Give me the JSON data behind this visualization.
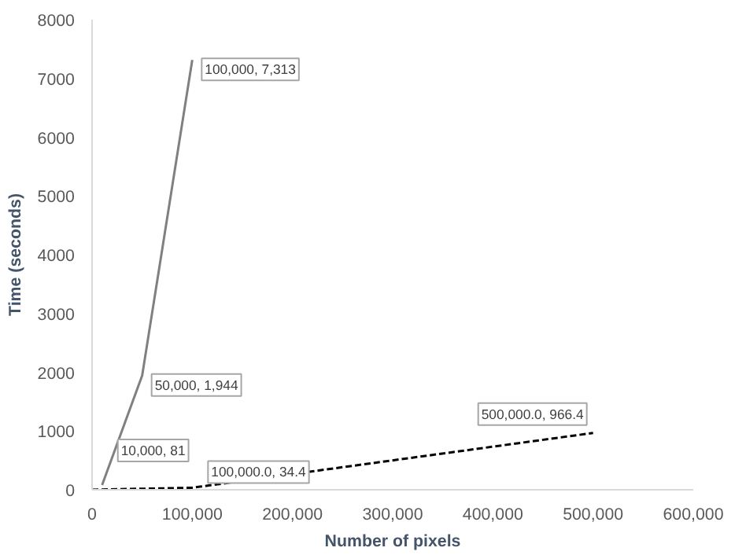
{
  "chart_data": {
    "type": "line",
    "xlabel": "Number of pixels",
    "ylabel": "Time (seconds)",
    "xlim": [
      0,
      600000
    ],
    "ylim": [
      0,
      8000
    ],
    "xticks": [
      {
        "value": 0,
        "label": "0"
      },
      {
        "value": 100000,
        "label": "100,000"
      },
      {
        "value": 200000,
        "label": "200,000"
      },
      {
        "value": 300000,
        "label": "300,000"
      },
      {
        "value": 400000,
        "label": "400,000"
      },
      {
        "value": 500000,
        "label": "500,000"
      },
      {
        "value": 600000,
        "label": "600,000"
      }
    ],
    "yticks": [
      0,
      1000,
      2000,
      3000,
      4000,
      5000,
      6000,
      7000,
      8000
    ],
    "grid": false,
    "series": [
      {
        "color": "#808080",
        "line_style": "solid",
        "x": [
          10000,
          50000,
          100000
        ],
        "values": [
          81,
          1944,
          7313
        ]
      },
      {
        "color": "#000000",
        "line_style": "dashed",
        "x": [
          0,
          100000,
          500000
        ],
        "values": [
          0,
          34.4,
          966.4
        ]
      }
    ],
    "annotations": [
      {
        "text": "100,000, 7,313",
        "x": 100000,
        "y": 7313
      },
      {
        "text": "50,000, 1,944",
        "x": 50000,
        "y": 1944
      },
      {
        "text": "10,000, 81",
        "x": 10000,
        "y": 81
      },
      {
        "text": "100,000.0, 34.4",
        "x": 100000,
        "y": 34.4
      },
      {
        "text": "500,000.0, 966.4",
        "x": 500000,
        "y": 966.4
      }
    ]
  }
}
